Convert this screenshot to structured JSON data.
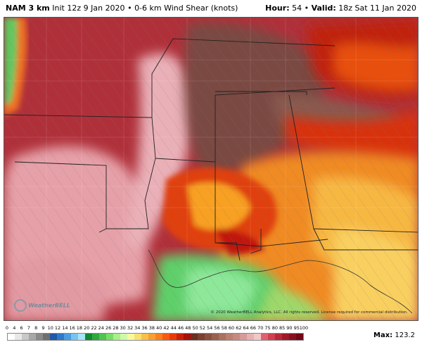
{
  "header": {
    "model": "NAM 3 km",
    "init": "Init 12z 9 Jan 2020",
    "product": "0-6 km Wind Shear (knots)",
    "hour_label": "Hour:",
    "hour": "54",
    "valid_label": "Valid:",
    "valid": "18z Sat 11 Jan 2020"
  },
  "map": {
    "copyright": "© 2020 WeatherBELL Analytics, LLC. All rights reserved. License required for commercial distribution.",
    "logo": "WeatherBELL"
  },
  "legend": {
    "labels": [
      "0",
      "4",
      "6",
      "7",
      "8",
      "9",
      "10",
      "12",
      "14",
      "16",
      "18",
      "20",
      "22",
      "24",
      "26",
      "28",
      "30",
      "32",
      "34",
      "36",
      "38",
      "40",
      "42",
      "44",
      "46",
      "48",
      "50",
      "52",
      "54",
      "56",
      "58",
      "60",
      "62",
      "64",
      "66",
      "70",
      "75",
      "80",
      "85",
      "90",
      "95",
      "100"
    ],
    "colors": [
      "#ffffff",
      "#e8e8e8",
      "#c8c8c8",
      "#a8a8a8",
      "#8a8a8a",
      "#6f6f6f",
      "#1f58a8",
      "#2f78c8",
      "#4a9ee0",
      "#78c4f0",
      "#a8e4f8",
      "#0f8a2f",
      "#2fa83f",
      "#4fc44f",
      "#78dc68",
      "#a8f088",
      "#d0f8a8",
      "#f8f8a0",
      "#f8e070",
      "#f8c048",
      "#f8a030",
      "#f88020",
      "#f85a10",
      "#e83a08",
      "#c82008",
      "#a81008",
      "#6a3020",
      "#7a4030",
      "#8a5040",
      "#9a6050",
      "#aa7060",
      "#ba8070",
      "#c88a80",
      "#d89a98",
      "#e8b0b0",
      "#f0c8c8",
      "#e06070",
      "#d04050",
      "#b82838",
      "#a01828",
      "#881020",
      "#700818"
    ],
    "max_label": "Max:",
    "max_value": "123.2"
  },
  "colors": {
    "deep_red": "#9c1a1f",
    "mid_red": "#c8454c",
    "pink": "#e8a0a8",
    "brown": "#7a4a40",
    "orange": "#f58a1e",
    "yellow": "#f9d05a",
    "green": "#5ed46a"
  }
}
